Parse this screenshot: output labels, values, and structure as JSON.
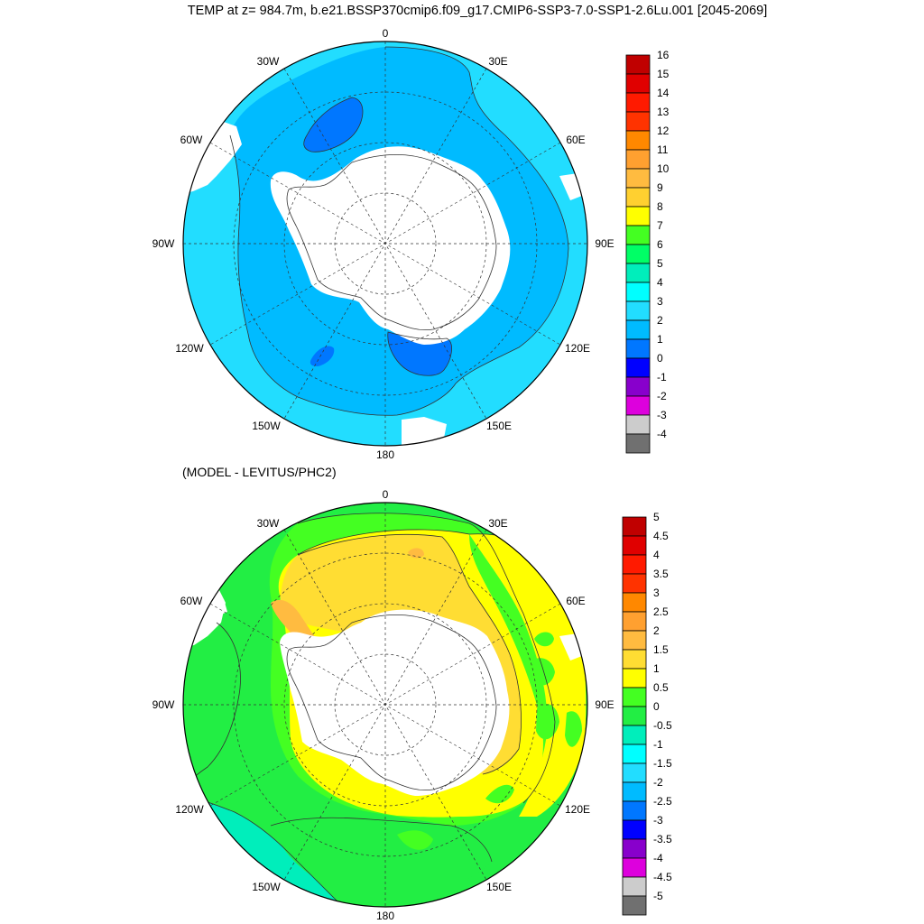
{
  "title": "TEMP at z= 984.7m, b.e21.BSSP370cmip6.f09_g17.CMIP6-SSP3-7.0-SSP1-2.6Lu.001 [2045-2069]",
  "subtitle": "(MODEL - LEVITUS/PHC2)",
  "longitude_labels": {
    "lon_0": "0",
    "lon_30e": "30E",
    "lon_60e": "60E",
    "lon_90e": "90E",
    "lon_120e": "120E",
    "lon_150e": "150E",
    "lon_180": "180",
    "lon_150w": "150W",
    "lon_120w": "120W",
    "lon_90w": "90W",
    "lon_60w": "60W",
    "lon_30w": "30W"
  },
  "panels": [
    {
      "name": "temperature",
      "colorbar": {
        "labels": [
          "16",
          "15",
          "14",
          "13",
          "12",
          "11",
          "10",
          "9",
          "8",
          "7",
          "6",
          "5",
          "4",
          "3",
          "2",
          "1",
          "0",
          "-1",
          "-2",
          "-3",
          "-4"
        ],
        "colors": [
          "#c00000",
          "#e00000",
          "#ff1a00",
          "#ff3300",
          "#ff8800",
          "#ffa030",
          "#ffbb40",
          "#ffd030",
          "#ffff00",
          "#44ff22",
          "#00ff66",
          "#00eebb",
          "#00ffff",
          "#22ddff",
          "#00bbff",
          "#0077ff",
          "#0000ff",
          "#8800cc",
          "#dd00dd",
          "#cccccc",
          "#707070"
        ]
      }
    },
    {
      "name": "difference",
      "colorbar": {
        "labels": [
          "5",
          "4.5",
          "4",
          "3.5",
          "3",
          "2.5",
          "2",
          "1.5",
          "1",
          "0.5",
          "0",
          "-0.5",
          "-1",
          "-1.5",
          "-2",
          "-2.5",
          "-3",
          "-3.5",
          "-4",
          "-4.5",
          "-5"
        ],
        "colors": [
          "#c00000",
          "#e00000",
          "#ff1a00",
          "#ff3300",
          "#ff8800",
          "#ffa030",
          "#ffbb40",
          "#ffdd33",
          "#ffff00",
          "#44ff22",
          "#22ee44",
          "#00eebb",
          "#00ffff",
          "#22ddff",
          "#00bbff",
          "#0077ff",
          "#0000ff",
          "#8800cc",
          "#dd00dd",
          "#cccccc",
          "#707070"
        ]
      }
    }
  ]
}
